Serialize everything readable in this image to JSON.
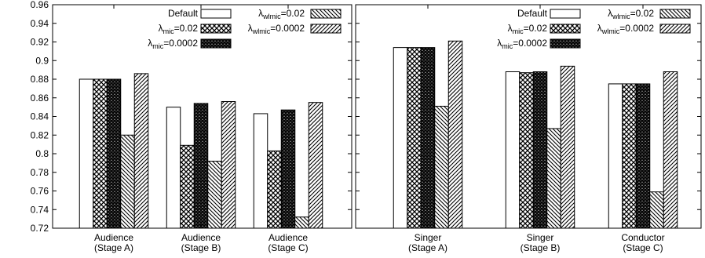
{
  "chart_data": [
    {
      "type": "bar",
      "ylim": [
        0.72,
        0.96
      ],
      "y_ticks": [
        "0.72",
        "0.74",
        "0.76",
        "0.78",
        "0.8",
        "0.82",
        "0.84",
        "0.86",
        "0.88",
        "0.9",
        "0.92",
        "0.94",
        "0.96"
      ],
      "grid": false,
      "legend_position": "top-right",
      "categories": [
        [
          "Audience",
          "(Stage A)"
        ],
        [
          "Audience",
          "(Stage B)"
        ],
        [
          "Audience",
          "(Stage C)"
        ]
      ],
      "series": [
        {
          "name": "Default",
          "pattern": "solid",
          "values": [
            0.88,
            0.85,
            0.843
          ]
        },
        {
          "name": "λmic=0.02",
          "pattern": "crosshatch",
          "values": [
            0.88,
            0.809,
            0.803
          ]
        },
        {
          "name": "λmic=0.0002",
          "pattern": "densecross",
          "values": [
            0.88,
            0.854,
            0.847
          ]
        },
        {
          "name": "λwlmic=0.02",
          "pattern": "backslash",
          "values": [
            0.82,
            0.792,
            0.732
          ]
        },
        {
          "name": "λwlmic=0.0002",
          "pattern": "slash",
          "values": [
            0.886,
            0.856,
            0.855
          ]
        }
      ]
    },
    {
      "type": "bar",
      "ylim": [
        0.72,
        0.96
      ],
      "y_ticks": [],
      "grid": false,
      "legend_position": "top-right",
      "categories": [
        [
          "Singer",
          "(Stage A)"
        ],
        [
          "Singer",
          "(Stage B)"
        ],
        [
          "Conductor",
          "(Stage C)"
        ]
      ],
      "series": [
        {
          "name": "Default",
          "pattern": "solid",
          "values": [
            0.914,
            0.888,
            0.875
          ]
        },
        {
          "name": "λmic=0.02",
          "pattern": "crosshatch",
          "values": [
            0.914,
            0.887,
            0.875
          ]
        },
        {
          "name": "λmic=0.0002",
          "pattern": "densecross",
          "values": [
            0.914,
            0.888,
            0.875
          ]
        },
        {
          "name": "λwlmic=0.02",
          "pattern": "backslash",
          "values": [
            0.851,
            0.827,
            0.759
          ]
        },
        {
          "name": "λwlmic=0.0002",
          "pattern": "slash",
          "values": [
            0.921,
            0.894,
            0.888
          ]
        }
      ]
    }
  ],
  "legend_labels": [
    {
      "base": "Default",
      "sub": "",
      "tail": ""
    },
    {
      "base": "λ",
      "sub": "mic",
      "tail": "=0.02"
    },
    {
      "base": "λ",
      "sub": "mic",
      "tail": "=0.0002"
    },
    {
      "base": "λ",
      "sub": "wlmic",
      "tail": "=0.02"
    },
    {
      "base": "λ",
      "sub": "wlmic",
      "tail": "=0.0002"
    }
  ]
}
